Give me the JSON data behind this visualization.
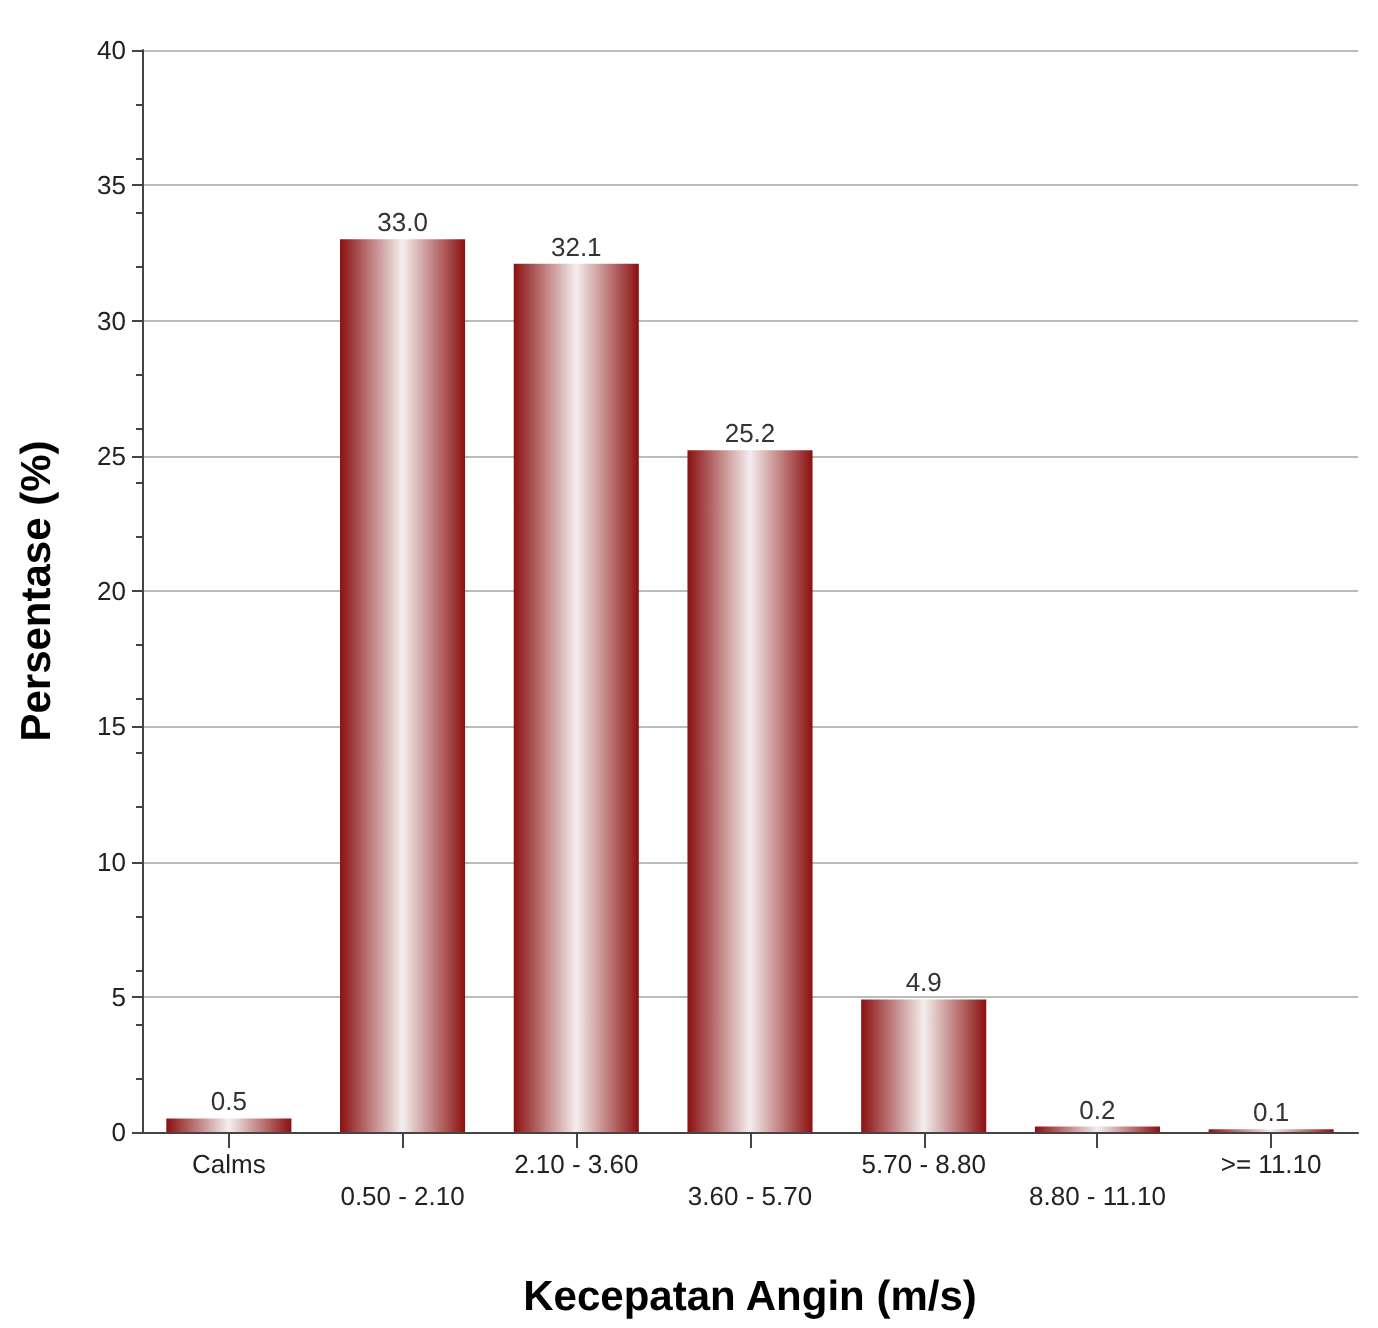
{
  "chart_data": {
    "type": "bar",
    "xlabel": "Kecepatan Angin (m/s)",
    "ylabel": "Persentase (%)",
    "categories": [
      "Calms",
      "0.50 - 2.10",
      "2.10 - 3.60",
      "3.60 - 5.70",
      "5.70 - 8.80",
      "8.80 - 11.10",
      ">= 11.10"
    ],
    "values": [
      0.5,
      33.0,
      32.1,
      25.2,
      4.9,
      0.2,
      0.1
    ],
    "value_labels": [
      "0.5",
      "33.0",
      "32.1",
      "25.2",
      "4.9",
      "0.2",
      "0.1"
    ],
    "color": "#8b1010",
    "ylim": [
      0,
      40
    ],
    "yticks": [
      0,
      5,
      10,
      15,
      20,
      25,
      30,
      35,
      40
    ],
    "grid": "y"
  }
}
